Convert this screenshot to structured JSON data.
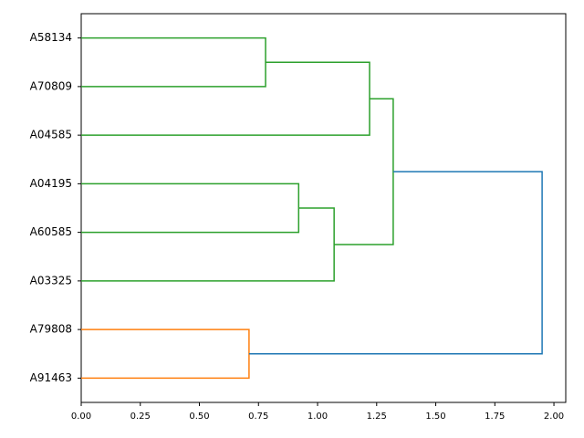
{
  "chart_data": {
    "type": "dendrogram",
    "leaves": [
      "A58134",
      "A70809",
      "A04585",
      "A04195",
      "A60585",
      "A03325",
      "A79808",
      "A91463"
    ],
    "merges": [
      {
        "children": [
          0,
          1
        ],
        "height": 0.78,
        "color": "#2ca02c"
      },
      {
        "children": [
          8,
          2
        ],
        "height": 1.22,
        "color": "#2ca02c"
      },
      {
        "children": [
          3,
          4
        ],
        "height": 0.92,
        "color": "#2ca02c"
      },
      {
        "children": [
          10,
          5
        ],
        "height": 1.07,
        "color": "#2ca02c"
      },
      {
        "children": [
          9,
          11
        ],
        "height": 1.32,
        "color": "#2ca02c"
      },
      {
        "children": [
          6,
          7
        ],
        "height": 0.71,
        "color": "#ff7f0e"
      },
      {
        "children": [
          12,
          13
        ],
        "height": 1.95,
        "color": "#1f77b4"
      }
    ],
    "xlim": [
      0,
      2.05
    ],
    "xticks": [
      {
        "value": 0,
        "label": "0.00"
      },
      {
        "value": 0.25,
        "label": "0.25"
      },
      {
        "value": 0.5,
        "label": "0.50"
      },
      {
        "value": 0.75,
        "label": "0.75"
      },
      {
        "value": 1,
        "label": "1.00"
      },
      {
        "value": 1.25,
        "label": "1.25"
      },
      {
        "value": 1.5,
        "label": "1.50"
      },
      {
        "value": 1.75,
        "label": "1.75"
      },
      {
        "value": 2,
        "label": "2.00"
      }
    ]
  }
}
